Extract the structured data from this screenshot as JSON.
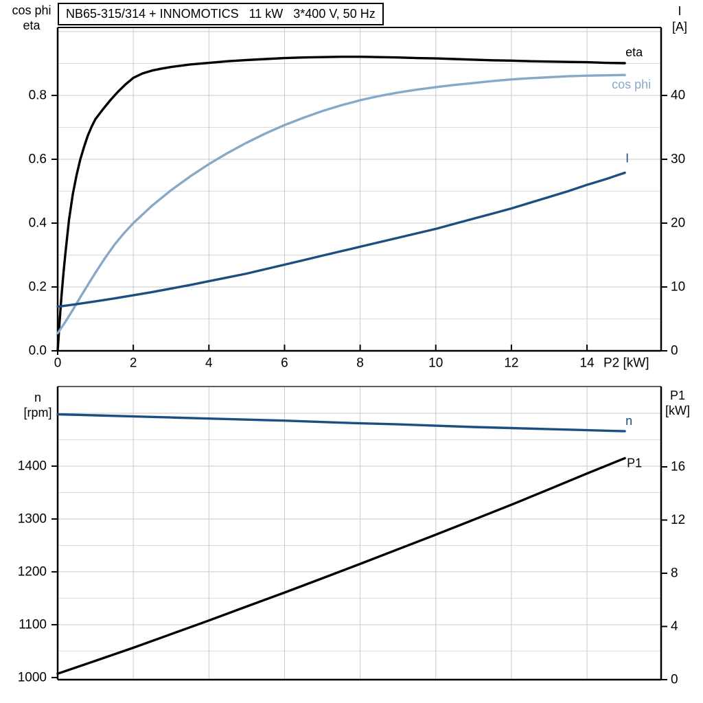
{
  "title": "NB65-315/314 + INNOMOTICS   11 kW   3*400 V, 50 Hz",
  "colors": {
    "black": "#000000",
    "dark_blue": "#1c4f80",
    "light_blue": "#87a9c9",
    "grid_major": "#c6c9cc",
    "grid_minor": "#d9dcde",
    "spine": "#000000",
    "spine_gray": "#5a5d60",
    "text": "#000000"
  },
  "chart_data": [
    {
      "id": "top",
      "type": "line",
      "x_axis": {
        "label": "P2 [kW]",
        "tick_values": [
          0,
          2,
          4,
          6,
          8,
          10,
          12,
          14
        ],
        "tick_labels": [
          "0",
          "2",
          "4",
          "6",
          "8",
          "10",
          "12",
          "14"
        ],
        "grid": [
          2,
          4,
          6,
          8,
          10,
          12,
          14
        ],
        "lim": [
          0,
          15.96
        ]
      },
      "left_axis": {
        "title_lines": [
          "cos phi",
          "eta"
        ],
        "tick_values": [
          0,
          0.2,
          0.4,
          0.6,
          0.8
        ],
        "tick_labels": [
          "0.0",
          "0.2",
          "0.4",
          "0.6",
          "0.8"
        ],
        "grid_major": [
          0.2,
          0.4,
          0.6,
          0.8,
          1.0
        ],
        "grid_minor": [
          0.1,
          0.3,
          0.5,
          0.7,
          0.9
        ],
        "lim": [
          0,
          1.0129
        ]
      },
      "right_axis": {
        "title_lines": [
          "I",
          "[A]"
        ],
        "tick_values": [
          0,
          10,
          20,
          30,
          40
        ],
        "tick_labels": [
          "0",
          "10",
          "20",
          "30",
          "40"
        ],
        "lim": [
          0,
          50.65
        ]
      },
      "series": [
        {
          "name": "eta",
          "label": "eta",
          "axis": "left",
          "color": "black",
          "points": [
            [
              0,
              0
            ],
            [
              0.05,
              0.09
            ],
            [
              0.1,
              0.17
            ],
            [
              0.15,
              0.24
            ],
            [
              0.2,
              0.3
            ],
            [
              0.3,
              0.41
            ],
            [
              0.4,
              0.49
            ],
            [
              0.5,
              0.55
            ],
            [
              0.6,
              0.6
            ],
            [
              0.7,
              0.64
            ],
            [
              0.8,
              0.675
            ],
            [
              0.9,
              0.703
            ],
            [
              1,
              0.726
            ],
            [
              1.2,
              0.757
            ],
            [
              1.4,
              0.786
            ],
            [
              1.6,
              0.812
            ],
            [
              1.8,
              0.835
            ],
            [
              2,
              0.855
            ],
            [
              2.25,
              0.869
            ],
            [
              2.5,
              0.878
            ],
            [
              2.75,
              0.884
            ],
            [
              3,
              0.889
            ],
            [
              3.5,
              0.897
            ],
            [
              4,
              0.902
            ],
            [
              4.5,
              0.907
            ],
            [
              5,
              0.911
            ],
            [
              5.5,
              0.914
            ],
            [
              6,
              0.917
            ],
            [
              6.5,
              0.919
            ],
            [
              7,
              0.92
            ],
            [
              7.5,
              0.921
            ],
            [
              8,
              0.921
            ],
            [
              8.5,
              0.92
            ],
            [
              9,
              0.919
            ],
            [
              9.5,
              0.917
            ],
            [
              10,
              0.916
            ],
            [
              10.5,
              0.914
            ],
            [
              11,
              0.912
            ],
            [
              11.5,
              0.91
            ],
            [
              12,
              0.909
            ],
            [
              12.5,
              0.907
            ],
            [
              13,
              0.906
            ],
            [
              13.5,
              0.905
            ],
            [
              14,
              0.904
            ],
            [
              14.5,
              0.902
            ],
            [
              15,
              0.901
            ]
          ]
        },
        {
          "name": "cos phi",
          "label": "cos phi",
          "axis": "left",
          "color": "light_blue",
          "points": [
            [
              0,
              0.055
            ],
            [
              0.2,
              0.09
            ],
            [
              0.4,
              0.128
            ],
            [
              0.6,
              0.168
            ],
            [
              0.8,
              0.207
            ],
            [
              1,
              0.245
            ],
            [
              1.25,
              0.29
            ],
            [
              1.5,
              0.332
            ],
            [
              1.75,
              0.368
            ],
            [
              2,
              0.4
            ],
            [
              2.5,
              0.455
            ],
            [
              3,
              0.503
            ],
            [
              3.5,
              0.546
            ],
            [
              4,
              0.585
            ],
            [
              4.5,
              0.62
            ],
            [
              5,
              0.652
            ],
            [
              5.5,
              0.681
            ],
            [
              6,
              0.707
            ],
            [
              6.5,
              0.73
            ],
            [
              7,
              0.751
            ],
            [
              7.5,
              0.769
            ],
            [
              8,
              0.785
            ],
            [
              8.5,
              0.798
            ],
            [
              9,
              0.809
            ],
            [
              9.5,
              0.818
            ],
            [
              10,
              0.826
            ],
            [
              10.5,
              0.833
            ],
            [
              11,
              0.839
            ],
            [
              11.5,
              0.845
            ],
            [
              12,
              0.85
            ],
            [
              12.5,
              0.854
            ],
            [
              13,
              0.857
            ],
            [
              13.5,
              0.86
            ],
            [
              14,
              0.862
            ],
            [
              14.5,
              0.863
            ],
            [
              15,
              0.864
            ]
          ]
        },
        {
          "name": "I",
          "label": "I",
          "axis": "right",
          "color": "dark_blue",
          "points": [
            [
              0,
              6.9
            ],
            [
              0.5,
              7.3
            ],
            [
              1,
              7.75
            ],
            [
              1.5,
              8.2
            ],
            [
              2,
              8.7
            ],
            [
              2.5,
              9.2
            ],
            [
              3,
              9.75
            ],
            [
              3.5,
              10.3
            ],
            [
              4,
              10.9
            ],
            [
              4.5,
              11.5
            ],
            [
              5,
              12.1
            ],
            [
              5.5,
              12.8
            ],
            [
              6,
              13.5
            ],
            [
              6.5,
              14.2
            ],
            [
              7,
              14.9
            ],
            [
              7.5,
              15.6
            ],
            [
              8,
              16.3
            ],
            [
              8.5,
              17
            ],
            [
              9,
              17.7
            ],
            [
              9.5,
              18.4
            ],
            [
              10,
              19.1
            ],
            [
              10.5,
              19.9
            ],
            [
              11,
              20.7
            ],
            [
              11.5,
              21.5
            ],
            [
              12,
              22.3
            ],
            [
              12.5,
              23.2
            ],
            [
              13,
              24.1
            ],
            [
              13.5,
              25
            ],
            [
              14,
              26
            ],
            [
              14.5,
              26.9
            ],
            [
              15,
              27.9
            ]
          ]
        }
      ]
    },
    {
      "id": "bottom",
      "type": "line",
      "x_axis": {
        "label": "",
        "tick_values": [],
        "tick_labels": [],
        "grid": [
          2,
          4,
          6,
          8,
          10,
          12,
          14
        ],
        "lim": [
          0,
          15.96
        ]
      },
      "left_axis": {
        "title_lines": [
          "n",
          "[rpm]"
        ],
        "tick_values": [
          1000,
          1100,
          1200,
          1300,
          1400
        ],
        "tick_labels": [
          "1000",
          "1100",
          "1200",
          "1300",
          "1400"
        ],
        "grid_major": [
          1100,
          1200,
          1300,
          1400,
          1500
        ],
        "grid_minor": [
          1050,
          1150,
          1250,
          1350,
          1450
        ],
        "lim": [
          996,
          1550.6
        ]
      },
      "right_axis": {
        "title_lines": [
          "P1",
          "[kW]"
        ],
        "tick_values": [
          0,
          4,
          8,
          12,
          16
        ],
        "tick_labels": [
          "0",
          "4",
          "8",
          "12",
          "16"
        ],
        "lim": [
          0,
          22.04
        ]
      },
      "series": [
        {
          "name": "n",
          "label": "n",
          "axis": "left",
          "color": "dark_blue",
          "points": [
            [
              0,
              1498
            ],
            [
              1,
              1496
            ],
            [
              2,
              1494
            ],
            [
              3,
              1492
            ],
            [
              4,
              1490
            ],
            [
              5,
              1488
            ],
            [
              6,
              1486
            ],
            [
              7,
              1483.5
            ],
            [
              8,
              1481
            ],
            [
              9,
              1479
            ],
            [
              10,
              1476.5
            ],
            [
              11,
              1474
            ],
            [
              12,
              1472
            ],
            [
              13,
              1470
            ],
            [
              14,
              1468
            ],
            [
              15,
              1466
            ]
          ]
        },
        {
          "name": "P1",
          "label": "P1",
          "axis": "right",
          "color": "black",
          "points": [
            [
              0,
              0.45
            ],
            [
              1,
              1.42
            ],
            [
              2,
              2.4
            ],
            [
              3,
              3.42
            ],
            [
              4,
              4.45
            ],
            [
              5,
              5.5
            ],
            [
              6,
              6.55
            ],
            [
              7,
              7.62
            ],
            [
              8,
              8.7
            ],
            [
              9,
              9.8
            ],
            [
              10,
              10.9
            ],
            [
              11,
              12.02
            ],
            [
              12,
              13.15
            ],
            [
              13,
              14.32
            ],
            [
              14,
              15.5
            ],
            [
              15,
              16.65
            ]
          ]
        }
      ]
    }
  ]
}
